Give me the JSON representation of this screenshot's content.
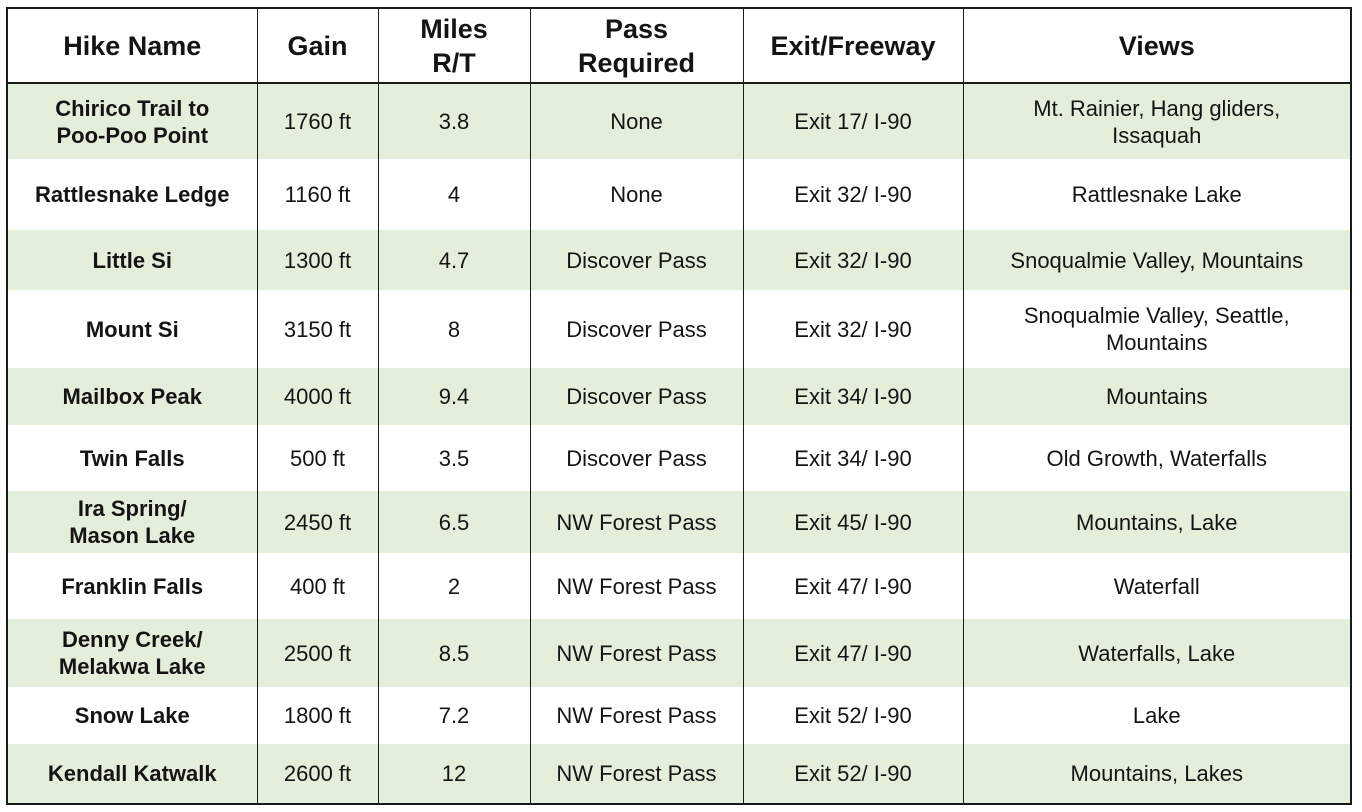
{
  "table": {
    "headers": {
      "name": "Hike Name",
      "gain": "Gain",
      "miles_line1": "Miles",
      "miles_line2": "R/T",
      "pass_line1": "Pass",
      "pass_line2": "Required",
      "exit": "Exit/Freeway",
      "views": "Views"
    },
    "rows": [
      {
        "name_line1": "Chirico Trail to",
        "name_line2": "Poo-Poo Point",
        "gain": "1760 ft",
        "miles": "3.8",
        "pass": "None",
        "exit": "Exit 17/ I-90",
        "views_line1": "Mt. Rainier, Hang gliders,",
        "views_line2": "Issaquah"
      },
      {
        "name_line1": "Rattlesnake Ledge",
        "name_line2": "",
        "gain": "1160 ft",
        "miles": "4",
        "pass": "None",
        "exit": "Exit 32/ I-90",
        "views_line1": "Rattlesnake Lake",
        "views_line2": ""
      },
      {
        "name_line1": "Little Si",
        "name_line2": "",
        "gain": "1300 ft",
        "miles": "4.7",
        "pass": "Discover Pass",
        "exit": "Exit 32/ I-90",
        "views_line1": "Snoqualmie Valley, Mountains",
        "views_line2": ""
      },
      {
        "name_line1": "Mount Si",
        "name_line2": "",
        "gain": "3150 ft",
        "miles": "8",
        "pass": "Discover Pass",
        "exit": "Exit 32/ I-90",
        "views_line1": "Snoqualmie Valley, Seattle,",
        "views_line2": "Mountains"
      },
      {
        "name_line1": "Mailbox Peak",
        "name_line2": "",
        "gain": "4000 ft",
        "miles": "9.4",
        "pass": "Discover Pass",
        "exit": "Exit 34/ I-90",
        "views_line1": "Mountains",
        "views_line2": ""
      },
      {
        "name_line1": "Twin Falls",
        "name_line2": "",
        "gain": "500 ft",
        "miles": "3.5",
        "pass": "Discover Pass",
        "exit": "Exit 34/ I-90",
        "views_line1": "Old Growth, Waterfalls",
        "views_line2": ""
      },
      {
        "name_line1": "Ira Spring/",
        "name_line2": "Mason Lake",
        "gain": "2450 ft",
        "miles": "6.5",
        "pass": "NW Forest Pass",
        "exit": "Exit 45/ I-90",
        "views_line1": "Mountains, Lake",
        "views_line2": ""
      },
      {
        "name_line1": "Franklin Falls",
        "name_line2": "",
        "gain": "400 ft",
        "miles": "2",
        "pass": "NW Forest Pass",
        "exit": "Exit 47/ I-90",
        "views_line1": "Waterfall",
        "views_line2": ""
      },
      {
        "name_line1": "Denny Creek/",
        "name_line2": "Melakwa Lake",
        "gain": "2500 ft",
        "miles": "8.5",
        "pass": "NW Forest Pass",
        "exit": "Exit 47/ I-90",
        "views_line1": "Waterfalls, Lake",
        "views_line2": ""
      },
      {
        "name_line1": "Snow Lake",
        "name_line2": "",
        "gain": "1800 ft",
        "miles": "7.2",
        "pass": "NW Forest Pass",
        "exit": "Exit 52/ I-90",
        "views_line1": "Lake",
        "views_line2": ""
      },
      {
        "name_line1": "Kendall Katwalk",
        "name_line2": "",
        "gain": "2600 ft",
        "miles": "12",
        "pass": "NW Forest Pass",
        "exit": "Exit 52/ I-90",
        "views_line1": "Mountains, Lakes",
        "views_line2": ""
      }
    ]
  },
  "colors": {
    "row_stripe": "#e3efdb",
    "row_plain": "#ffffff",
    "border": "#1a1a1a",
    "text": "#141414"
  }
}
